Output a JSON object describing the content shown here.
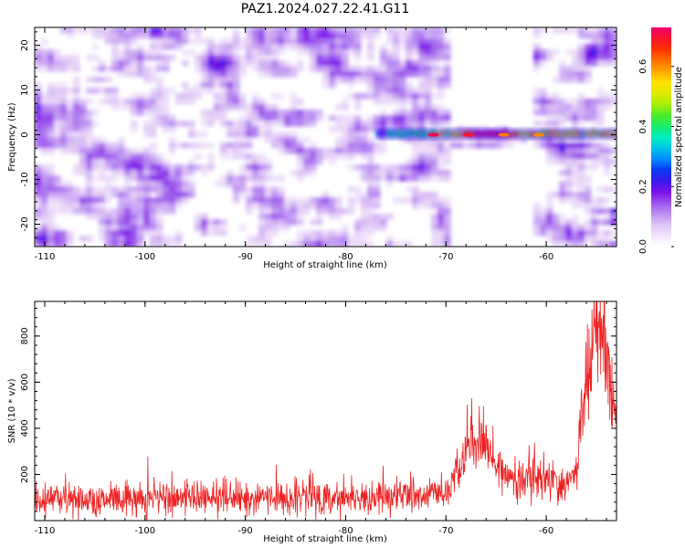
{
  "title": "PAZ1.2024.027.22.41.G11",
  "chart_data": [
    {
      "type": "heatmap",
      "xlabel": "Height of straight line (km)",
      "ylabel": "Frequency (Hz)",
      "xlim": [
        -111,
        -53
      ],
      "ylim": [
        -25,
        24
      ],
      "xticks": [
        -110,
        -100,
        -90,
        -80,
        -70,
        -60
      ],
      "xtick_labels": [
        "-110",
        "-100",
        "-90",
        "-80",
        "-70",
        "-60"
      ],
      "yticks": [
        -20,
        -10,
        0,
        10,
        20
      ],
      "ytick_labels": [
        "-20",
        "-10",
        "0",
        "10",
        "20"
      ],
      "colorbar": {
        "label": "Normalized spectral amplitude",
        "range": [
          0,
          0.73
        ],
        "ticks": [
          0,
          0.2,
          0.4,
          0.6
        ],
        "tick_labels": [
          "0.0",
          "0.2",
          "0.4",
          "0.6"
        ],
        "colormap": [
          "#ffffff",
          "#e8d5f7",
          "#b07ff0",
          "#7b10e8",
          "#0a1ef0",
          "#00a8ff",
          "#00f0c0",
          "#30e830",
          "#c8f000",
          "#ffe000",
          "#ff8000",
          "#ff2000",
          "#f00070"
        ]
      },
      "features": [
        {
          "label": "",
          "x_range": [
            -77,
            -53
          ],
          "frequency": 0,
          "peak_value": 0.73,
          "peak_x": -66
        }
      ],
      "background_level": 0.2
    },
    {
      "type": "line",
      "xlabel": "Height of straight line (km)",
      "ylabel": "SNR (10 * v/v)",
      "xlim": [
        -111,
        -53
      ],
      "ylim": [
        0,
        950
      ],
      "xticks": [
        -110,
        -100,
        -90,
        -80,
        -70,
        -60
      ],
      "xtick_labels": [
        "-110",
        "-100",
        "-90",
        "-80",
        "-70",
        "-60"
      ],
      "yticks": [
        200,
        400,
        600,
        800
      ],
      "ytick_labels": [
        "200",
        "400",
        "600",
        "800"
      ],
      "color": "#ee2222",
      "envelope": {
        "x": [
          -111,
          -100,
          -85,
          -75,
          -70,
          -69,
          -68,
          -67.5,
          -67,
          -66.5,
          -66,
          -65,
          -64,
          -62,
          -60,
          -58,
          -57,
          -56.5,
          -56,
          -55.5,
          -55,
          -54.5,
          -54,
          -53.5,
          -53
        ],
        "y": [
          90,
          95,
          100,
          105,
          115,
          180,
          290,
          350,
          320,
          390,
          310,
          230,
          200,
          190,
          170,
          150,
          230,
          420,
          620,
          780,
          820,
          800,
          720,
          520,
          420
        ]
      },
      "noise_amplitude": 55,
      "samples": 1400
    }
  ]
}
